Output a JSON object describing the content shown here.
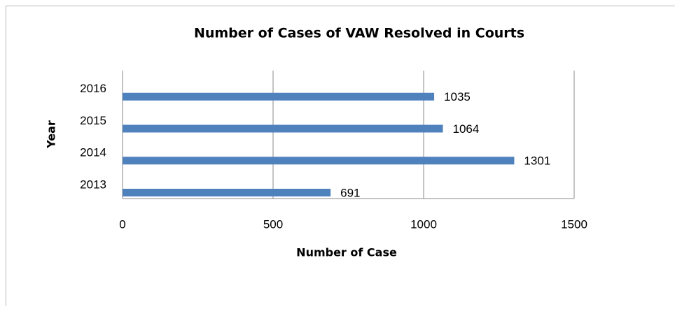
{
  "chart_data": {
    "type": "bar",
    "orientation": "horizontal",
    "title": "Number of Cases of VAW Resolved in Courts",
    "x_label": "Number of Case",
    "y_label": "Year",
    "categories": [
      "2013",
      "2014",
      "2015",
      "2016"
    ],
    "values": [
      691,
      1301,
      1064,
      1035
    ],
    "color": "#4f81bd",
    "xlim": [
      0,
      1500
    ],
    "xticks": [
      0,
      500,
      1000,
      1500
    ],
    "grid": true
  }
}
